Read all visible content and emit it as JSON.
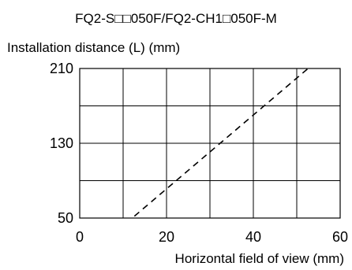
{
  "chart_data": {
    "type": "line",
    "title": "FQ2-S□□050F/FQ2-CH1□050F-M",
    "ylabel": "Installation distance (L) (mm)",
    "xlabel": "Horizontal field of view (mm)",
    "xlim": [
      0,
      60
    ],
    "ylim": [
      50,
      210
    ],
    "x_ticks": [
      0,
      20,
      40,
      60
    ],
    "y_ticks_labeled": [
      50,
      130,
      210
    ],
    "x_tick_labels": [
      "0",
      "20",
      "40",
      "60"
    ],
    "y_tick_labels": [
      "50",
      "130",
      "210"
    ],
    "grid": true,
    "series": [
      {
        "line_style": "dashed",
        "x": [
          12.6,
          52.6
        ],
        "y": [
          52,
          210
        ]
      }
    ]
  }
}
